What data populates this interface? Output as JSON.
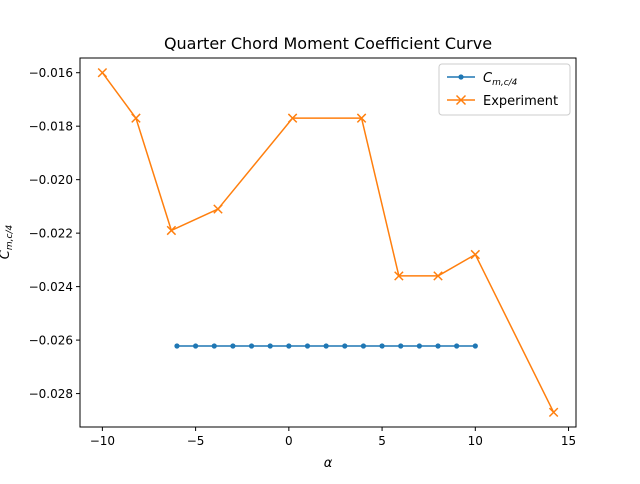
{
  "chart_data": {
    "type": "line",
    "title": "Quarter Chord Moment Coefficient Curve",
    "xlabel": "α",
    "ylabel": "C_{m,c/4}",
    "xlim": [
      -11.2,
      15.4
    ],
    "ylim": [
      -0.02925,
      -0.01545
    ],
    "xticks": [
      -10,
      -5,
      0,
      5,
      10,
      15
    ],
    "xtick_labels": [
      "−10",
      "−5",
      "0",
      "5",
      "10",
      "15"
    ],
    "yticks": [
      -0.028,
      -0.026,
      -0.024,
      -0.022,
      -0.02,
      -0.018,
      -0.016
    ],
    "ytick_labels": [
      "−0.028",
      "−0.026",
      "−0.024",
      "−0.022",
      "−0.020",
      "−0.018",
      "−0.016"
    ],
    "grid": false,
    "legend_position": "upper right",
    "series": [
      {
        "name": "C_{m,c/4}",
        "color": "#1f77b4",
        "marker": "dot",
        "x": [
          -6,
          -5,
          -4,
          -3,
          -2,
          -1,
          0,
          1,
          2,
          3,
          4,
          5,
          6,
          7,
          8,
          9,
          10
        ],
        "y": [
          -0.02622,
          -0.02622,
          -0.02622,
          -0.02622,
          -0.02622,
          -0.02622,
          -0.02622,
          -0.02622,
          -0.02622,
          -0.02622,
          -0.02622,
          -0.02622,
          -0.02622,
          -0.02622,
          -0.02622,
          -0.02622,
          -0.02622
        ]
      },
      {
        "name": "Experiment",
        "color": "#ff7f0e",
        "marker": "x",
        "x": [
          -10.0,
          -8.2,
          -6.3,
          -3.8,
          0.2,
          3.9,
          5.9,
          8.0,
          10.0,
          14.2
        ],
        "y": [
          -0.016,
          -0.0177,
          -0.0219,
          -0.0211,
          -0.0177,
          -0.0177,
          -0.0236,
          -0.0236,
          -0.0228,
          -0.0287
        ]
      }
    ]
  }
}
